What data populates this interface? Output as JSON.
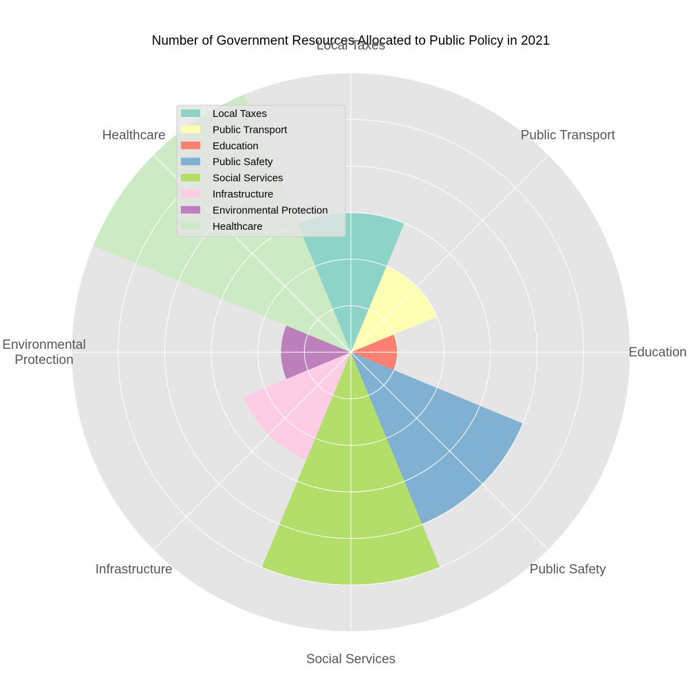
{
  "chart_data": {
    "type": "polar-bar",
    "title": "Number of Government Resources Allocated to Public Policy in 2021",
    "categories": [
      "Local Taxes",
      "Public Transport",
      "Education",
      "Public Safety",
      "Social Services",
      "Infrastructure",
      "Environmental Protection",
      "Healthcare"
    ],
    "category_labels": [
      [
        "Local Taxes"
      ],
      [
        "Public Transport"
      ],
      [
        "Education"
      ],
      [
        "Public Safety"
      ],
      [
        "Social Services"
      ],
      [
        "Infrastructure"
      ],
      [
        "Environmental",
        "Protection"
      ],
      [
        "Healthcare"
      ]
    ],
    "values": [
      300,
      200,
      100,
      400,
      500,
      250,
      150,
      600
    ],
    "rlim": [
      0,
      600
    ],
    "grid": true,
    "radial_tick_labels_shown": false,
    "legend": {
      "position": "upper-left",
      "entries": [
        "Local Taxes",
        "Public Transport",
        "Education",
        "Public Safety",
        "Social Services",
        "Infrastructure",
        "Environmental Protection",
        "Healthcare"
      ]
    },
    "colors": [
      "#8dd3c7",
      "#ffffb3",
      "#fb8072",
      "#80b1d3",
      "#b3de69",
      "#fccde5",
      "#bc80bd",
      "#ccebc5"
    ],
    "background_color": "#e5e5e5",
    "grid_color": "#ffffff"
  }
}
